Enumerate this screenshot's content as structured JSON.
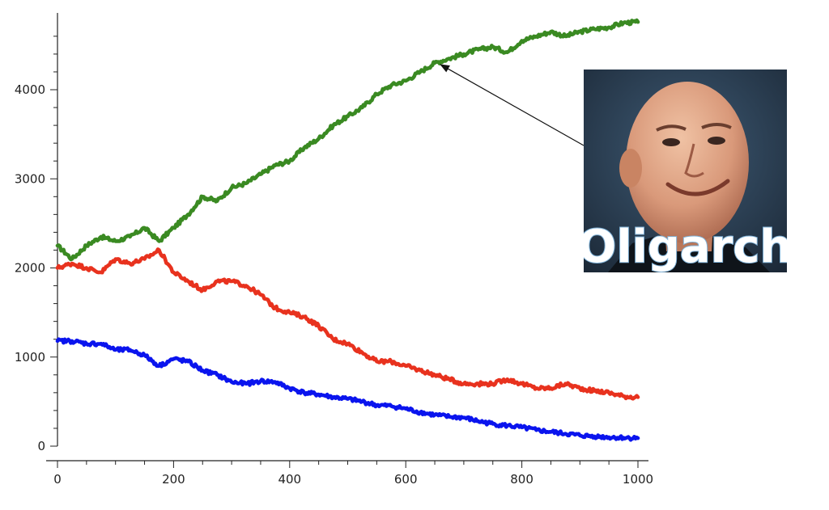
{
  "chart_data": {
    "type": "line",
    "title": "",
    "xlabel": "",
    "ylabel": "",
    "xlim": [
      0,
      1000
    ],
    "ylim": [
      0,
      4800
    ],
    "grid": false,
    "x_ticks": [
      0,
      200,
      400,
      600,
      800,
      1000
    ],
    "y_ticks": [
      0,
      1000,
      2000,
      3000,
      4000
    ],
    "x": [
      0,
      25,
      50,
      75,
      100,
      125,
      150,
      175,
      200,
      225,
      250,
      275,
      300,
      325,
      350,
      375,
      400,
      425,
      450,
      475,
      500,
      525,
      550,
      575,
      600,
      625,
      650,
      675,
      700,
      725,
      750,
      775,
      800,
      825,
      850,
      875,
      900,
      925,
      950,
      975,
      1000
    ],
    "series": [
      {
        "color": "#3a8a22",
        "values": [
          2250,
          2100,
          2250,
          2350,
          2300,
          2350,
          2450,
          2300,
          2450,
          2600,
          2800,
          2750,
          2900,
          2950,
          3050,
          3150,
          3200,
          3350,
          3450,
          3600,
          3700,
          3800,
          3950,
          4050,
          4100,
          4200,
          4300,
          4350,
          4400,
          4450,
          4480,
          4420,
          4550,
          4600,
          4650,
          4600,
          4650,
          4680,
          4700,
          4750,
          4760
        ]
      },
      {
        "color": "#e8321e",
        "values": [
          2000,
          2050,
          2000,
          1950,
          2100,
          2050,
          2100,
          2200,
          1950,
          1850,
          1750,
          1850,
          1850,
          1800,
          1700,
          1550,
          1500,
          1450,
          1350,
          1200,
          1150,
          1050,
          950,
          950,
          900,
          850,
          800,
          750,
          700,
          700,
          700,
          750,
          700,
          650,
          650,
          700,
          650,
          620,
          600,
          560,
          550
        ]
      },
      {
        "color": "#0a14ee",
        "values": [
          1180,
          1180,
          1150,
          1150,
          1080,
          1080,
          1020,
          900,
          980,
          950,
          850,
          800,
          720,
          700,
          730,
          720,
          650,
          600,
          580,
          550,
          530,
          500,
          460,
          450,
          420,
          380,
          350,
          330,
          320,
          280,
          250,
          230,
          210,
          180,
          160,
          140,
          120,
          110,
          100,
          95,
          90
        ]
      }
    ],
    "annotation": {
      "text": "Oligarch",
      "target_x": 660,
      "target_y": 4300
    }
  }
}
